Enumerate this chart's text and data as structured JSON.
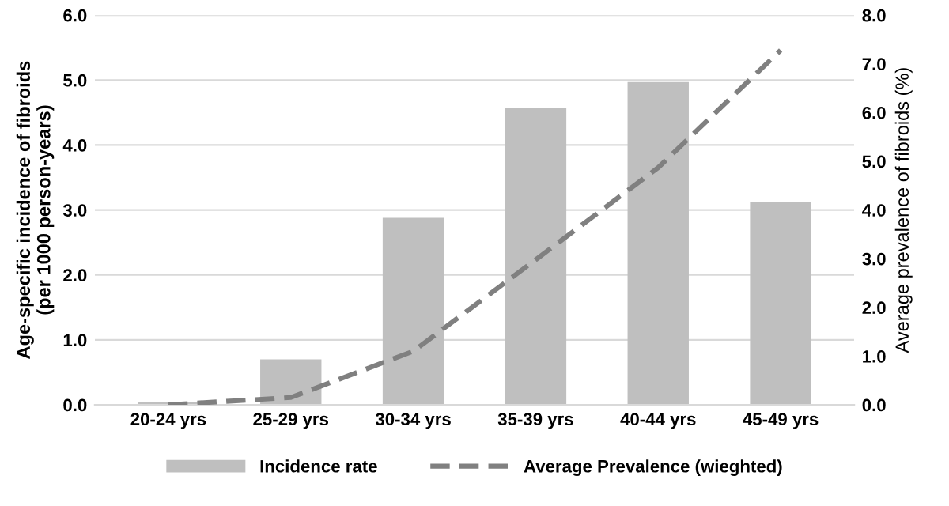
{
  "chart_data": {
    "type": "bar",
    "ylabel": "Age-specific incidence of fibroids\n(per 1000 person-years)",
    "y2label": "Average prevalence of fibroids (%)",
    "categories": [
      "20-24 yrs",
      "25-29 yrs",
      "30-34 yrs",
      "35-39 yrs",
      "40-44 yrs",
      "45-49 yrs"
    ],
    "series": [
      {
        "name": "Incidence rate",
        "color": "#bfbfbf",
        "values": [
          0.05,
          0.7,
          2.88,
          4.57,
          4.97,
          3.12
        ]
      },
      {
        "name": "Average Prevalence (wieghted)",
        "type": "line",
        "axis": "y2",
        "color": "#808080",
        "line_style": "dashed",
        "values": [
          0.0,
          0.15,
          1.1,
          2.98,
          4.87,
          7.28
        ]
      }
    ],
    "ylim": [
      0,
      6
    ],
    "yticks": [
      {
        "value": 0,
        "label": "0.0"
      },
      {
        "value": 1,
        "label": "1.0"
      },
      {
        "value": 2,
        "label": "2.0"
      },
      {
        "value": 3,
        "label": "3.0"
      },
      {
        "value": 4,
        "label": "4.0"
      },
      {
        "value": 5,
        "label": "5.0"
      },
      {
        "value": 6,
        "label": "6.0"
      }
    ],
    "y2lim": [
      0,
      8
    ],
    "y2ticks": [
      {
        "value": 0,
        "label": "0.0"
      },
      {
        "value": 1,
        "label": "1.0"
      },
      {
        "value": 2,
        "label": "2.0"
      },
      {
        "value": 3,
        "label": "3.0"
      },
      {
        "value": 4,
        "label": "4.0"
      },
      {
        "value": 5,
        "label": "5.0"
      },
      {
        "value": 6,
        "label": "6.0"
      },
      {
        "value": 7,
        "label": "7.0"
      },
      {
        "value": 8,
        "label": "8.0"
      }
    ],
    "grid": "y",
    "legend": "bottom"
  }
}
